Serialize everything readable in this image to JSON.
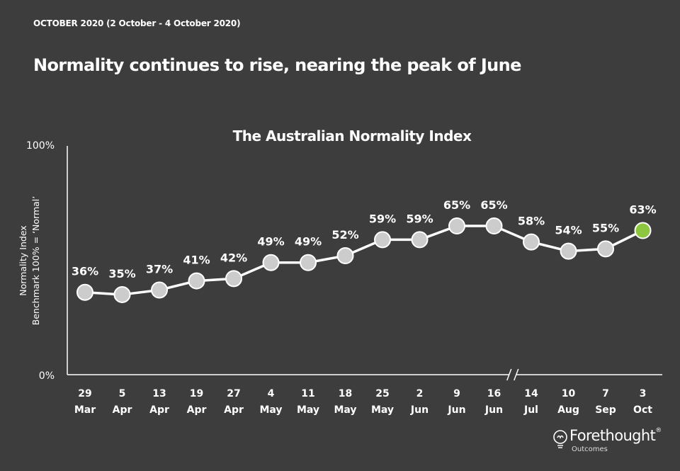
{
  "header": {
    "period": "OCTOBER 2020 (2 October - 4 October 2020)",
    "headline": "Normality continues to rise, nearing the peak of June"
  },
  "chart_data": {
    "type": "line",
    "title": "The Australian Normality Index",
    "ylabel": "Normality Index",
    "ylabel_sub": "Benchmark 100% = ‘Normal’",
    "ylim": [
      0,
      100
    ],
    "ytick_labels": [
      "0%",
      "100%"
    ],
    "categories": [
      [
        "29",
        "Mar"
      ],
      [
        "5",
        "Apr"
      ],
      [
        "13",
        "Apr"
      ],
      [
        "19",
        "Apr"
      ],
      [
        "27",
        "Apr"
      ],
      [
        "4",
        "May"
      ],
      [
        "11",
        "May"
      ],
      [
        "18",
        "May"
      ],
      [
        "25",
        "May"
      ],
      [
        "2",
        "Jun"
      ],
      [
        "9",
        "Jun"
      ],
      [
        "16",
        "Jun"
      ],
      [
        "14",
        "Jul"
      ],
      [
        "10",
        "Aug"
      ],
      [
        "7",
        "Sep"
      ],
      [
        "3",
        "Oct"
      ]
    ],
    "values": [
      36,
      35,
      37,
      41,
      42,
      49,
      49,
      52,
      59,
      59,
      65,
      65,
      58,
      54,
      55,
      63
    ],
    "data_labels": [
      "36%",
      "35%",
      "37%",
      "41%",
      "42%",
      "49%",
      "49%",
      "52%",
      "59%",
      "59%",
      "65%",
      "65%",
      "58%",
      "54%",
      "55%",
      "63%"
    ],
    "axis_break_after_index": 11,
    "colors": {
      "line": "#ffffff",
      "marker": "#cccccc",
      "highlight_marker": "#8dc63f",
      "highlight_label": "#8dc63f"
    },
    "grid": false,
    "legend": "none"
  },
  "logo": {
    "brand": "Forethought",
    "registered": "®",
    "sub": "Outcomes",
    "icon": "lightbulb-icon"
  }
}
